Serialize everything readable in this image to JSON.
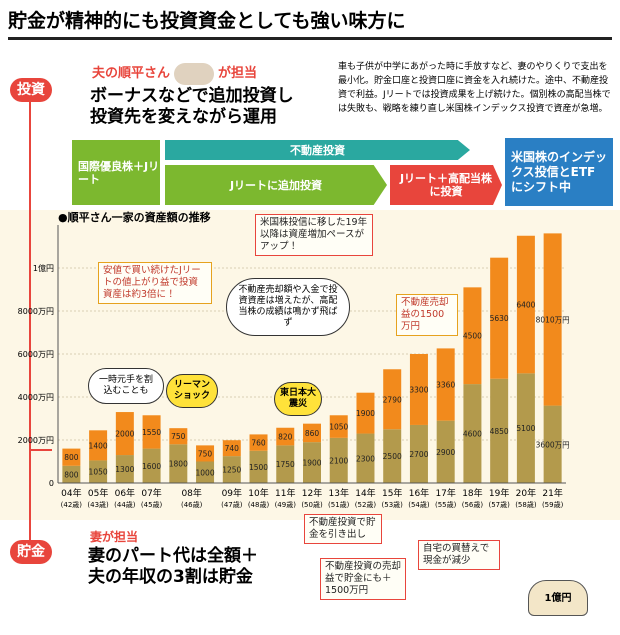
{
  "header": {
    "title": "貯金が精神的にも投資資金としても強い味方に"
  },
  "investment": {
    "person": "夫の順平さん",
    "role": "が担当",
    "headline": [
      "ボーナスなどで追加投資し",
      "投資先を変えながら運用"
    ],
    "body": "車も子供が中学にあがった時に手放すなど、妻のやりくりで支出を最小化。貯金口座と投資口座に資金を入れ続けた。途中、不動産投資で利益。Jリートでは投資成果を上げ続けた。個別株の高配当株では失敗も、戦略を練り直し米国株インデックス投資で資産が急増。"
  },
  "phases": [
    "国際優良株＋Jリート",
    "不動産投資",
    "Jリートに追加投資",
    "Jリート＋高配当株に投資",
    "米国株のインデックス投信とETFにシフト中"
  ],
  "savings": {
    "person": "妻が担当",
    "headline": [
      "妻のパート代は全額＋",
      "夫の年収の3割は貯金"
    ]
  },
  "illustration": {
    "bag": "1億円"
  },
  "chart_data": {
    "type": "stacked_bar",
    "title": "●順平さん一家の資産額の推移",
    "categories": [
      "04年",
      "05年",
      "06年",
      "07年",
      "08年",
      null,
      "09年",
      "10年",
      "11年",
      "12年",
      "13年",
      "14年",
      "15年",
      "16年",
      "17年",
      "18年",
      "19年",
      "20年",
      "21年"
    ],
    "ages": [
      "(42歳)",
      "(43歳)",
      "(44歳)",
      "(45歳)",
      "(46歳)",
      null,
      "(47歳)",
      "(48歳)",
      "(49歳)",
      "(50歳)",
      "(51歳)",
      "(52歳)",
      "(53歳)",
      "(54歳)",
      "(55歳)",
      "(56歳)",
      "(57歳)",
      "(58歳)",
      "(59歳)"
    ],
    "series": [
      {
        "name": "貯金",
        "color": "#b39a4c",
        "values": [
          800,
          1050,
          1300,
          1600,
          1800,
          1000,
          1250,
          1500,
          1750,
          1900,
          2100,
          2300,
          2500,
          2700,
          2900,
          4600,
          4850,
          5100,
          3600
        ],
        "value_labels": [
          "800",
          "1050",
          "1300",
          "1600",
          "1800",
          "1000",
          "1250",
          "1500",
          "1750",
          "1900",
          "2100",
          "2300",
          "2500",
          "2700",
          "2900",
          "4600",
          "4850",
          "5100",
          "3600万円"
        ]
      },
      {
        "name": "投資",
        "color": "#f28a1c",
        "values": [
          800,
          1400,
          2000,
          1550,
          750,
          750,
          740,
          760,
          820,
          860,
          1050,
          1900,
          2790,
          3300,
          3360,
          4500,
          5630,
          6400,
          8010
        ],
        "value_labels": [
          "800",
          "1400",
          "2000",
          "1550",
          "750",
          "750",
          "740",
          "760",
          "820",
          "860",
          "1050",
          "1900",
          "2790",
          "3300",
          "3360",
          "4500",
          "5630",
          "6400",
          "8010万円"
        ]
      }
    ],
    "ylim": [
      0,
      12000
    ],
    "yticks": [
      0,
      {
        "value": 2000,
        "label": "2000万円"
      },
      {
        "value": 4000,
        "label": "4000万円"
      },
      {
        "value": 6000,
        "label": "6000万円"
      },
      {
        "value": 8000,
        "label": "8000万円"
      },
      {
        "value": 10000,
        "label": "1億円"
      }
    ],
    "grid": true,
    "annotations": [
      "米国株投信に移した19年以降は資産増加ペースがアップ！",
      "安値で買い続けたJリートの値上がり益で投資資産は約3倍に！",
      "不動産売却額や入金で投資資産は増えたが、高配当株の成績は鳴かず飛ばず",
      "一時元手を割込むことも",
      "リーマンショック",
      "東日本大震災",
      "不動産売却益の1500万円",
      "不動産投資で貯金を引き出し",
      "不動産投資の売却益で貯金にも＋1500万円",
      "自宅の買替えで現金が減少"
    ]
  }
}
